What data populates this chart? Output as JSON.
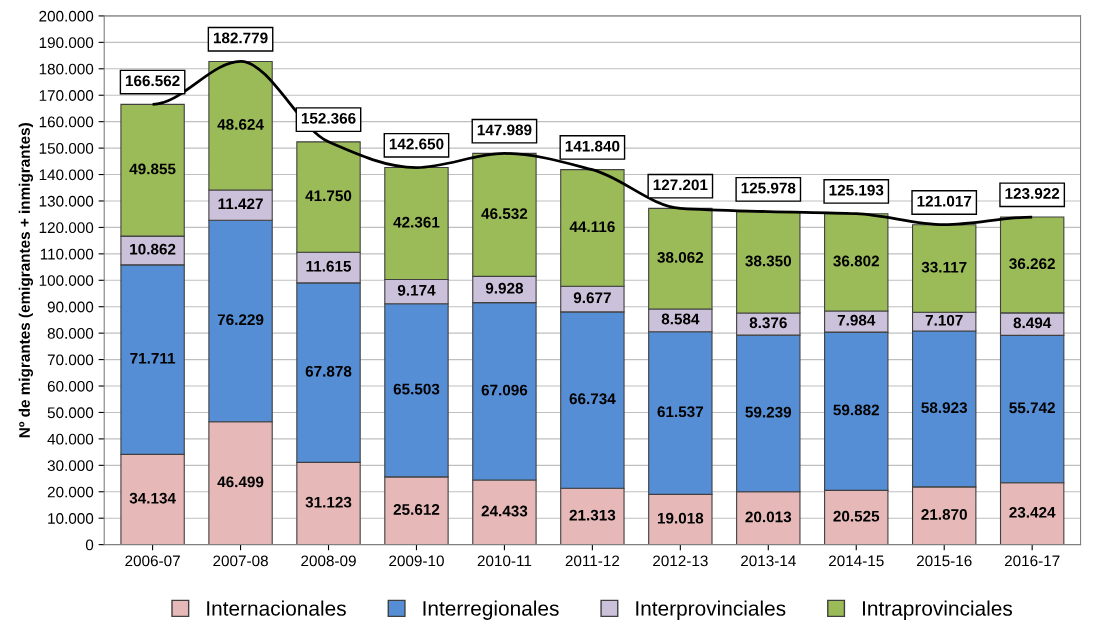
{
  "chart_data": {
    "type": "bar",
    "stacked": true,
    "ylabel": "Nº de migrantes (emigrantes + inmigrantes)",
    "categories": [
      "2006-07",
      "2007-08",
      "2008-09",
      "2009-10",
      "2010-11",
      "2011-12",
      "2012-13",
      "2013-14",
      "2014-15",
      "2015-16",
      "2016-17"
    ],
    "series": [
      {
        "name": "Internacionales",
        "color": "#e6b9b8",
        "values": [
          34134,
          46499,
          31123,
          25612,
          24433,
          21313,
          19018,
          20013,
          20525,
          21870,
          23424
        ],
        "value_labels": [
          "34.134",
          "46.499",
          "31.123",
          "25.612",
          "24.433",
          "21.313",
          "19.018",
          "20.013",
          "20.525",
          "21.870",
          "23.424"
        ]
      },
      {
        "name": "Interregionales",
        "color": "#558ed5",
        "values": [
          71711,
          76229,
          67878,
          65503,
          67096,
          66734,
          61537,
          59239,
          59882,
          58923,
          55742
        ],
        "value_labels": [
          "71.711",
          "76.229",
          "67.878",
          "65.503",
          "67.096",
          "66.734",
          "61.537",
          "59.239",
          "59.882",
          "58.923",
          "55.742"
        ]
      },
      {
        "name": "Interprovinciales",
        "color": "#ccc1da",
        "values": [
          10862,
          11427,
          11615,
          9174,
          9928,
          9677,
          8584,
          8376,
          7984,
          7107,
          8494
        ],
        "value_labels": [
          "10.862",
          "11.427",
          "11.615",
          "9.174",
          "9.928",
          "9.677",
          "8.584",
          "8.376",
          "7.984",
          "7.107",
          "8.494"
        ]
      },
      {
        "name": "Intraprovinciales",
        "color": "#9bbb59",
        "values": [
          49855,
          48624,
          41750,
          42361,
          46532,
          44116,
          38062,
          38350,
          36802,
          33117,
          36262
        ],
        "value_labels": [
          "49.855",
          "48.624",
          "41.750",
          "42.361",
          "46.532",
          "44.116",
          "38.062",
          "38.350",
          "36.802",
          "33.117",
          "36.262"
        ]
      },
      {
        "type": "line",
        "color": "#000000",
        "values": [
          166562,
          182779,
          152366,
          142650,
          147989,
          141840,
          127201,
          125978,
          125193,
          121017,
          123922
        ]
      }
    ],
    "totals": [
      "166.562",
      "182.779",
      "152.366",
      "142.650",
      "147.989",
      "141.840",
      "127.201",
      "125.978",
      "125.193",
      "121.017",
      "123.922"
    ],
    "ylim": [
      0,
      200000
    ],
    "yticks": [
      0,
      {
        "value": 10000,
        "label": "10.000"
      },
      {
        "value": 20000,
        "label": "20.000"
      },
      {
        "value": 30000,
        "label": "30.000"
      },
      {
        "value": 40000,
        "label": "40.000"
      },
      {
        "value": 50000,
        "label": "50.000"
      },
      {
        "value": 60000,
        "label": "60.000"
      },
      {
        "value": 70000,
        "label": "70.000"
      },
      {
        "value": 80000,
        "label": "80.000"
      },
      {
        "value": 90000,
        "label": "90.000"
      },
      {
        "value": 100000,
        "label": "100.000"
      },
      {
        "value": 110000,
        "label": "110.000"
      },
      {
        "value": 120000,
        "label": "120.000"
      },
      {
        "value": 130000,
        "label": "130.000"
      },
      {
        "value": 140000,
        "label": "140.000"
      },
      {
        "value": 150000,
        "label": "150.000"
      },
      {
        "value": 160000,
        "label": "160.000"
      },
      {
        "value": 170000,
        "label": "170.000"
      },
      {
        "value": 180000,
        "label": "180.000"
      },
      {
        "value": 190000,
        "label": "190.000"
      },
      {
        "value": 200000,
        "label": "200.000"
      }
    ],
    "grid": "y",
    "legend": "bottom"
  }
}
